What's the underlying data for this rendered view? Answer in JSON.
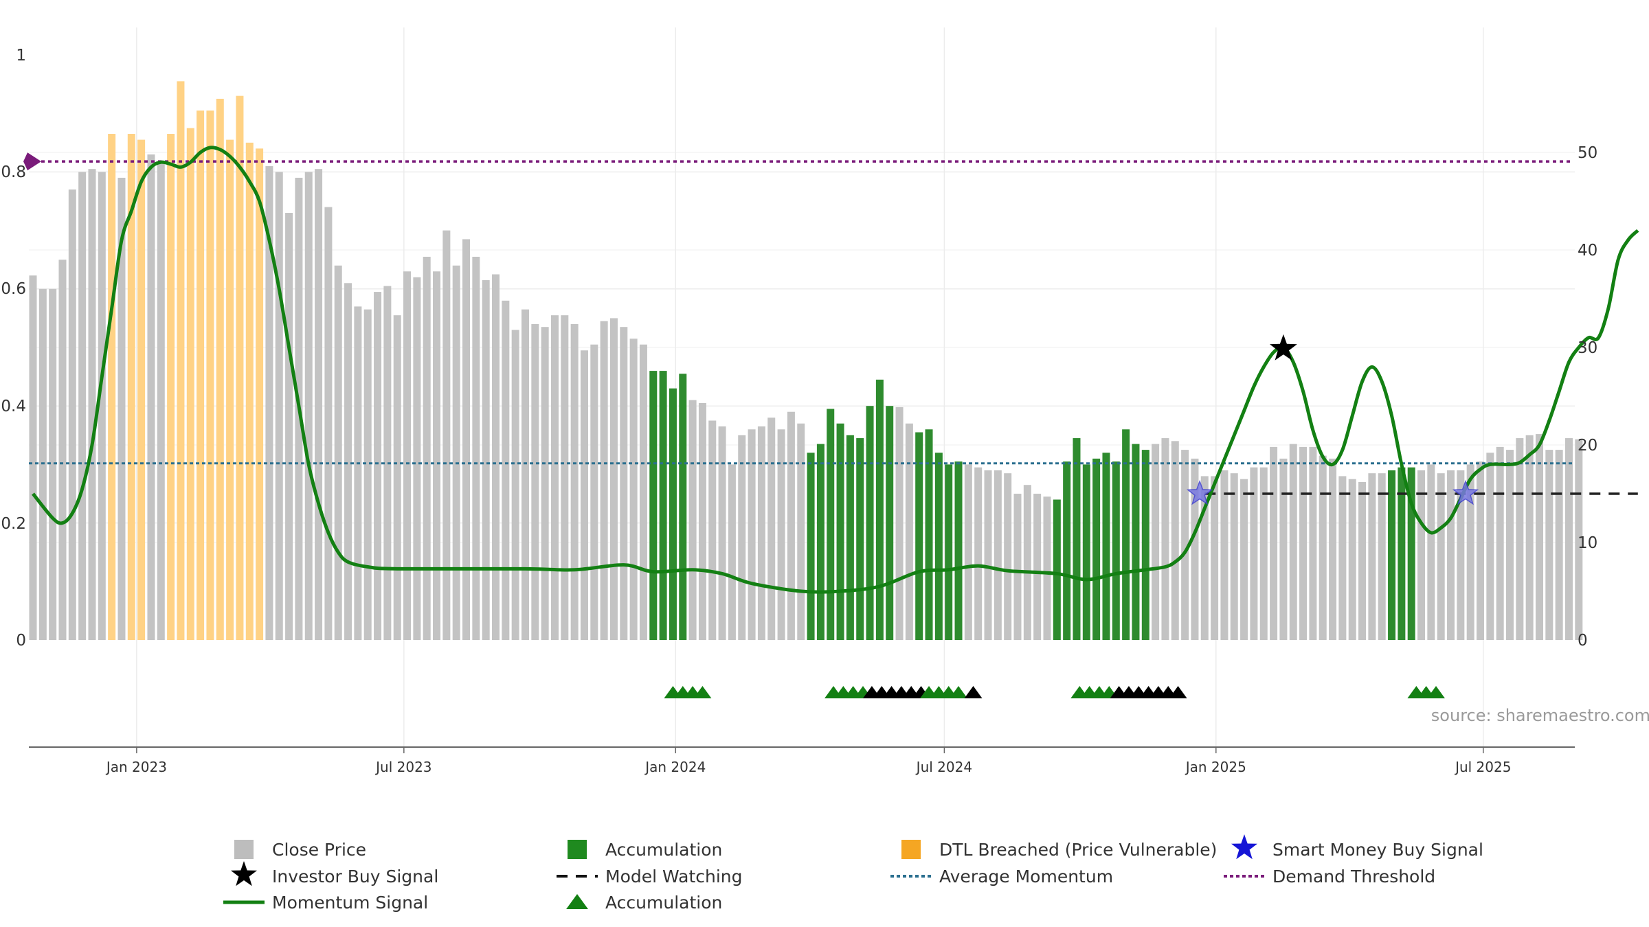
{
  "chart_data": {
    "type": "bar",
    "source_label": "source: sharemaestro.com",
    "left_axis": {
      "range": [
        0,
        1
      ],
      "ticks": [
        "0",
        "0.2",
        "0.4",
        "0.6",
        "0.8",
        "1"
      ]
    },
    "right_axis": {
      "range": [
        0,
        60
      ],
      "ticks": [
        "0",
        "10",
        "20",
        "30",
        "40",
        "50"
      ]
    },
    "x_axis": {
      "start": "2022-10-20",
      "end": "2025-09-01",
      "ticks": [
        {
          "label": "Jan 2023",
          "date": "2023-01-01"
        },
        {
          "label": "Jul 2023",
          "date": "2023-07-01"
        },
        {
          "label": "Jan 2024",
          "date": "2024-01-01"
        },
        {
          "label": "Jul 2024",
          "date": "2024-07-01"
        },
        {
          "label": "Jan 2025",
          "date": "2025-01-01"
        },
        {
          "label": "Jul 2025",
          "date": "2025-07-01"
        }
      ]
    },
    "bar_colors": {
      "close": "#c3c3c3",
      "accumulation": "#2e8b2e",
      "dtl": "#ffd285"
    },
    "bars": [
      0.623,
      0.6,
      0.6,
      0.65,
      0.77,
      0.8,
      0.805,
      0.8,
      0.865,
      0.79,
      0.865,
      0.855,
      0.83,
      0.815,
      0.865,
      0.955,
      0.875,
      0.905,
      0.905,
      0.925,
      0.855,
      0.93,
      0.85,
      0.84,
      0.81,
      0.8,
      0.73,
      0.79,
      0.8,
      0.805,
      0.74,
      0.64,
      0.61,
      0.57,
      0.565,
      0.595,
      0.605,
      0.555,
      0.63,
      0.62,
      0.655,
      0.63,
      0.7,
      0.64,
      0.685,
      0.655,
      0.615,
      0.625,
      0.58,
      0.53,
      0.565,
      0.54,
      0.535,
      0.555,
      0.555,
      0.54,
      0.495,
      0.505,
      0.545,
      0.55,
      0.535,
      0.515,
      0.505,
      0.46,
      0.46,
      0.43,
      0.455,
      0.41,
      0.405,
      0.375,
      0.365,
      0.3,
      0.35,
      0.36,
      0.365,
      0.38,
      0.36,
      0.39,
      0.37,
      0.32,
      0.335,
      0.395,
      0.37,
      0.35,
      0.345,
      0.4,
      0.445,
      0.4,
      0.398,
      0.37,
      0.355,
      0.36,
      0.32,
      0.3,
      0.305,
      0.3,
      0.295,
      0.29,
      0.29,
      0.285,
      0.25,
      0.265,
      0.25,
      0.245,
      0.24,
      0.305,
      0.345,
      0.3,
      0.31,
      0.32,
      0.305,
      0.36,
      0.335,
      0.325,
      0.335,
      0.345,
      0.34,
      0.325,
      0.31,
      0.28,
      0.28,
      0.29,
      0.285,
      0.275,
      0.295,
      0.295,
      0.33,
      0.31,
      0.335,
      0.33,
      0.33,
      0.315,
      0.31,
      0.28,
      0.275,
      0.27,
      0.285,
      0.285,
      0.29,
      0.295,
      0.295,
      0.29,
      0.3,
      0.285,
      0.29,
      0.29,
      0.3,
      0.305,
      0.32,
      0.33,
      0.325,
      0.345,
      0.35,
      0.352,
      0.325,
      0.325,
      0.345,
      0.343
    ],
    "accumulation_ranges": [
      [
        63,
        66
      ],
      [
        79,
        87
      ],
      [
        90,
        94
      ],
      [
        104,
        113
      ],
      [
        138,
        140
      ]
    ],
    "dtl_ranges": [
      [
        8,
        8
      ],
      [
        10,
        11
      ],
      [
        14,
        23
      ]
    ],
    "momentum_signal": {
      "color": "#138013",
      "points": [
        [
          0,
          15
        ],
        [
          2,
          12.5
        ],
        [
          3,
          12
        ],
        [
          4,
          13
        ],
        [
          5,
          15.5
        ],
        [
          6,
          20
        ],
        [
          7,
          27
        ],
        [
          8,
          34
        ],
        [
          9,
          41
        ],
        [
          10,
          44
        ],
        [
          11,
          47
        ],
        [
          12,
          48.5
        ],
        [
          13,
          49
        ],
        [
          14,
          48.8
        ],
        [
          15,
          48.5
        ],
        [
          16,
          49
        ],
        [
          17,
          50
        ],
        [
          18,
          50.5
        ],
        [
          19,
          50.3
        ],
        [
          20,
          49.6
        ],
        [
          21,
          48.5
        ],
        [
          22,
          47
        ],
        [
          23,
          45
        ],
        [
          24,
          41
        ],
        [
          25,
          36
        ],
        [
          26,
          30
        ],
        [
          27,
          24
        ],
        [
          28,
          18
        ],
        [
          29,
          14
        ],
        [
          30,
          11
        ],
        [
          31,
          9
        ],
        [
          32,
          8
        ],
        [
          34,
          7.5
        ],
        [
          37,
          7.3
        ],
        [
          50,
          7.3
        ],
        [
          55,
          7.2
        ],
        [
          60,
          7.7
        ],
        [
          63,
          7
        ],
        [
          67,
          7.2
        ],
        [
          70,
          6.8
        ],
        [
          73,
          5.8
        ],
        [
          78,
          5
        ],
        [
          82,
          5
        ],
        [
          86,
          5.5
        ],
        [
          90,
          7
        ],
        [
          93,
          7.2
        ],
        [
          96,
          7.6
        ],
        [
          99,
          7.1
        ],
        [
          104,
          6.8
        ],
        [
          107,
          6.2
        ],
        [
          110,
          6.8
        ],
        [
          113,
          7.2
        ],
        [
          115,
          7.5
        ],
        [
          116,
          8
        ],
        [
          117,
          9
        ],
        [
          118,
          11
        ],
        [
          119,
          13.5
        ],
        [
          120,
          16
        ],
        [
          121,
          18.5
        ],
        [
          122,
          21
        ],
        [
          123,
          23.5
        ],
        [
          124,
          26
        ],
        [
          125,
          28
        ],
        [
          126,
          29.5
        ],
        [
          127,
          30
        ],
        [
          128,
          28.5
        ],
        [
          129,
          25.5
        ],
        [
          130,
          21.5
        ],
        [
          131,
          18.8
        ],
        [
          132,
          18
        ],
        [
          133,
          19.5
        ],
        [
          134,
          23
        ],
        [
          135,
          26.5
        ],
        [
          136,
          28
        ],
        [
          137,
          26.5
        ],
        [
          138,
          23
        ],
        [
          139,
          18
        ],
        [
          140,
          14
        ],
        [
          141,
          12
        ],
        [
          142,
          11
        ],
        [
          143,
          11.5
        ],
        [
          144,
          12.5
        ],
        [
          145,
          14.5
        ],
        [
          146,
          16.5
        ],
        [
          147,
          17.5
        ],
        [
          148,
          18
        ],
        [
          150,
          18
        ],
        [
          151,
          18.2
        ],
        [
          152,
          19
        ],
        [
          153,
          20
        ],
        [
          154,
          22.5
        ],
        [
          155,
          25.5
        ],
        [
          156,
          28.5
        ],
        [
          157,
          30
        ],
        [
          158,
          31
        ],
        [
          159,
          31
        ],
        [
          160,
          34
        ],
        [
          161,
          39
        ],
        [
          162,
          41
        ],
        [
          163,
          42
        ]
      ]
    },
    "model_watching": {
      "from": 119,
      "to": 163,
      "value": 0.25
    },
    "average_momentum": {
      "value": 0.302,
      "color": "#2a6f8f"
    },
    "demand_threshold": {
      "value": 0.818,
      "color": "#7a1b7a"
    },
    "investor_buy_signal": [
      {
        "index": 127,
        "value": 0.498
      }
    ],
    "smart_money_buy_signals": [
      {
        "index": 118.5,
        "value": 0.25
      },
      {
        "index": 145.5,
        "value": 0.25
      }
    ],
    "markers": {
      "green_1": [
        65,
        66,
        67,
        68
      ],
      "green_2": [
        81.3,
        82.3,
        83.3,
        84.3
      ],
      "black_1": [
        85.2,
        86.2,
        87.2,
        88.2,
        89.2,
        90.2
      ],
      "green_3": [
        91,
        92,
        93,
        94
      ],
      "black_2": [
        95.5
      ],
      "green_4": [
        106.3,
        107.3,
        108.3,
        109.3
      ],
      "black_3": [
        110.3,
        111.3,
        112.3,
        113.3,
        114.3,
        115.3,
        116.3
      ],
      "green_5": [
        140.5,
        141.5,
        142.5
      ]
    },
    "legend": [
      {
        "key": "close",
        "label": "Close Price"
      },
      {
        "key": "acc_bar",
        "label": "Accumulation"
      },
      {
        "key": "dtl",
        "label": "DTL Breached (Price Vulnerable)"
      },
      {
        "key": "smart",
        "label": "Smart Money Buy Signal"
      },
      {
        "key": "investor",
        "label": "Investor Buy Signal"
      },
      {
        "key": "watching",
        "label": "Model Watching"
      },
      {
        "key": "avg",
        "label": "Average Momentum"
      },
      {
        "key": "demand",
        "label": "Demand Threshold"
      },
      {
        "key": "momentum",
        "label": "Momentum Signal"
      },
      {
        "key": "acc_tri",
        "label": "Accumulation"
      }
    ]
  }
}
